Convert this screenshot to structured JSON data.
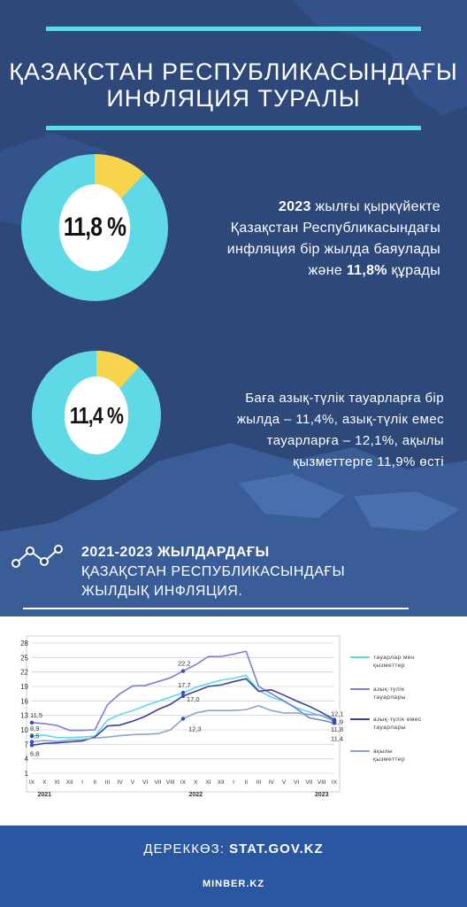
{
  "header": {
    "title_line1": "ҚАЗАҚСТАН РЕСПУБЛИКАСЫНДАҒЫ",
    "title_line2": "ИНФЛЯЦИЯ ТУРАЛЫ"
  },
  "stat1": {
    "value": "11,8 %",
    "fraction": 0.118,
    "line1_bold": "2023",
    "line1_rest": " жылғы қыркүйекте",
    "line2": "Қазақстан Республикасындағы",
    "line3": "инфляция бір жылда баяулады",
    "line4_pre": "және ",
    "line4_bold": "11,8%",
    "line4_post": " құрады"
  },
  "stat2": {
    "value": "11,4 %",
    "fraction": 0.114,
    "line1": "Баға азық-түлік тауарларға бір",
    "line2": "жылда – 11,4%, азық-түлік емес",
    "line3": "тауарларға – 12,1%, ақылы",
    "line4": "қызметтерге 11,9% өсті"
  },
  "section": {
    "title_line1": "2021-2023 ЖЫЛДАРДАҒЫ",
    "title_line2": "ҚАЗАҚСТАН РЕСПУБЛИКАСЫНДАҒЫ",
    "title_line3": "ЖЫЛДЫҚ ИНФЛЯЦИЯ.",
    "icon": "trend-line-icon"
  },
  "chart_data": {
    "type": "line",
    "y_ticks": [
      "1",
      "4",
      "7",
      "10",
      "13",
      "16",
      "19",
      "22",
      "25",
      "28"
    ],
    "ylim": [
      1,
      28
    ],
    "x_ticks": [
      "IX",
      "X",
      "XI",
      "XII",
      "I",
      "II",
      "III",
      "IV",
      "V",
      "VI",
      "VII",
      "VIII",
      "IX",
      "X",
      "XI",
      "XII",
      "I",
      "II",
      "III",
      "IV",
      "V",
      "VI",
      "VII",
      "VIII",
      "IX"
    ],
    "year_labels": [
      "2021",
      "2022",
      "2023"
    ],
    "grid": true,
    "legend_placement": "right",
    "series": [
      {
        "name": "тауарлар мен қызметтер",
        "color": "#5fd9e6",
        "values": [
          8.7,
          8.9,
          8.4,
          8.4,
          8.5,
          8.7,
          12.0,
          13.2,
          14.0,
          15.0,
          15.9,
          16.8,
          17.7,
          18.8,
          19.6,
          20.3,
          20.7,
          21.3,
          18.1,
          16.8,
          15.9,
          14.6,
          13.7,
          12.9,
          11.8
        ]
      },
      {
        "name": "азық-түлік тауарлары",
        "color": "#7a7fd6",
        "values": [
          11.5,
          11.3,
          10.9,
          9.9,
          9.9,
          10.0,
          15.2,
          17.5,
          19.1,
          19.2,
          20.0,
          20.8,
          22.2,
          23.5,
          25.2,
          25.2,
          25.7,
          26.3,
          19.0,
          17.5,
          16.0,
          14.4,
          12.5,
          12.0,
          11.4
        ]
      },
      {
        "name": "азық-түлік емес тауарлары",
        "color": "#3c3f9a",
        "values": [
          6.8,
          7.2,
          7.3,
          7.5,
          7.7,
          8.5,
          10.8,
          11.0,
          11.8,
          12.8,
          14.2,
          15.3,
          17.0,
          18.0,
          19.0,
          19.3,
          20.0,
          20.6,
          18.0,
          18.3,
          17.2,
          16.0,
          14.9,
          13.6,
          12.1
        ]
      },
      {
        "name": "ақылы қызметтер",
        "color": "#8fa2cc",
        "values": [
          7.5,
          7.8,
          7.6,
          7.9,
          8.0,
          8.3,
          8.5,
          8.8,
          9.0,
          9.1,
          9.2,
          10.0,
          12.3,
          13.5,
          14.0,
          14.0,
          14.0,
          14.2,
          15.0,
          14.0,
          13.5,
          13.5,
          13.2,
          13.0,
          11.9
        ]
      }
    ],
    "annotations": [
      "11,5",
      "8,9",
      "7,5",
      "6,8",
      "22,2",
      "17,7",
      "17,0",
      "12,3",
      "12,1",
      "11,9",
      "11,8",
      "11,4"
    ]
  },
  "footer": {
    "source_label": "ДЕРЕККӨЗ: ",
    "source_value": "STAT.GOV.KZ",
    "site": "MINBER.KZ"
  }
}
